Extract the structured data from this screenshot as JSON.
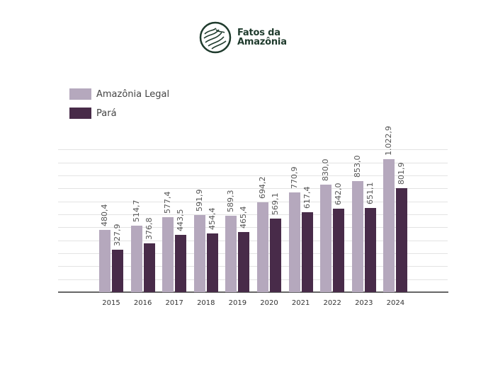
{
  "header": {
    "logo_line1": "Fatos da",
    "logo_line2": "Amazônia",
    "logo_icon": "topographic-circle-icon",
    "logo_color": "#1f3b2d"
  },
  "legend": [
    {
      "label": "Amazônia Legal",
      "color": "#b5a8bd"
    },
    {
      "label": "Pará",
      "color": "#482b49"
    }
  ],
  "chart_data": {
    "type": "bar",
    "title": "",
    "xlabel": "",
    "ylabel": "",
    "categories": [
      "2015",
      "2016",
      "2017",
      "2018",
      "2019",
      "2020",
      "2021",
      "2022",
      "2023",
      "2024"
    ],
    "series": [
      {
        "name": "Amazônia Legal",
        "color": "#b5a8bd",
        "values": [
          480.4,
          514.7,
          577.4,
          591.9,
          589.3,
          694.2,
          770.9,
          830.0,
          853.0,
          1022.9
        ],
        "labels": [
          "480,4",
          "514,7",
          "577,4",
          "591,9",
          "589,3",
          "694,2",
          "770,9",
          "830,0",
          "853,0",
          "1.022,9"
        ]
      },
      {
        "name": "Pará",
        "color": "#482b49",
        "values": [
          327.9,
          376.8,
          443.5,
          454.4,
          465.4,
          569.1,
          617.4,
          642.0,
          651.1,
          801.9
        ],
        "labels": [
          "327,9",
          "376,8",
          "443,5",
          "454,4",
          "465,4",
          "569,1",
          "617,4",
          "642,0",
          "651,1",
          "801,9"
        ]
      }
    ],
    "ylim": [
      0,
      1100
    ],
    "grid": true,
    "gridline_step": 100,
    "y_tick_labels_visible": false,
    "legend_position": "top-left",
    "data_labels": "rotated-vertical"
  }
}
